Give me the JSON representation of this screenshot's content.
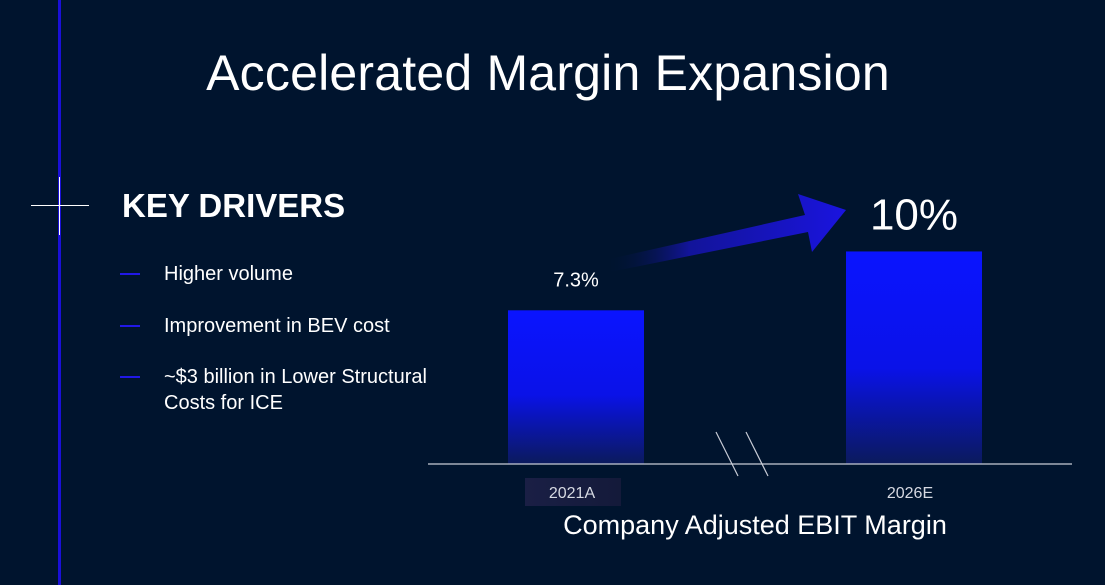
{
  "title": "Accelerated Margin Expansion",
  "key_drivers": {
    "heading": "KEY DRIVERS",
    "items": [
      "Higher volume",
      "Improvement in BEV cost",
      "~$3 billion in Lower Structural Costs for ICE"
    ]
  },
  "colors": {
    "background": "#00142e",
    "bar": "#0a14ff",
    "accent_line": "#1a10d8",
    "text": "#ffffff"
  },
  "chart_data": {
    "type": "bar",
    "categories": [
      "2021A",
      "2026E"
    ],
    "values": [
      7.3,
      10
    ],
    "value_labels": [
      "7.3%",
      "10%"
    ],
    "xlabel": "Company Adjusted EBIT Margin",
    "ylabel": "",
    "axis_break": true,
    "trend_arrow": true
  }
}
